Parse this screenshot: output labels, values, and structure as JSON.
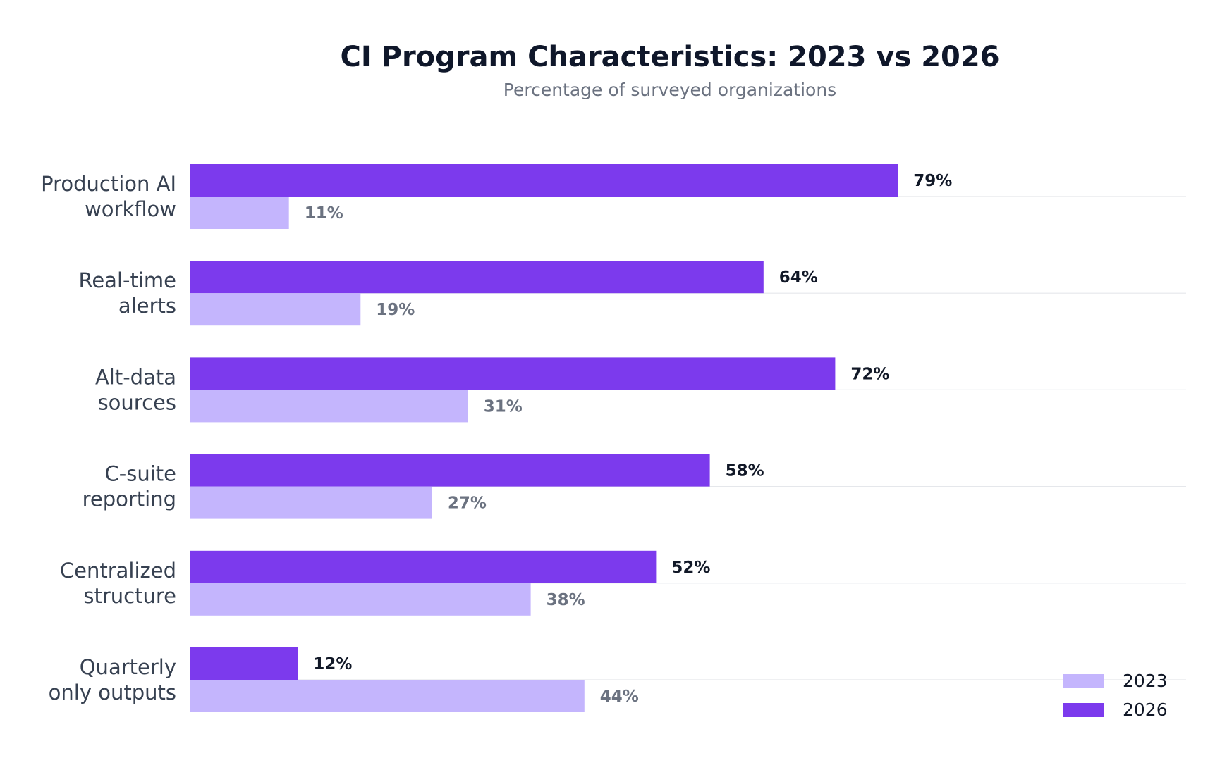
{
  "chart_data": {
    "type": "bar",
    "orientation": "horizontal",
    "title": "CI Program Characteristics: 2023 vs 2026",
    "subtitle": "Percentage of surveyed organizations",
    "categories": [
      [
        "Production AI",
        "workflow"
      ],
      [
        "Real-time",
        "alerts"
      ],
      [
        "Alt-data",
        "sources"
      ],
      [
        "C-suite",
        "reporting"
      ],
      [
        "Centralized",
        "structure"
      ],
      [
        "Quarterly",
        "only outputs"
      ]
    ],
    "series": [
      {
        "name": "2026",
        "color": "#7c3aed",
        "values": [
          79,
          64,
          72,
          58,
          52,
          12
        ],
        "labels": [
          "79%",
          "64%",
          "72%",
          "58%",
          "52%",
          "12%"
        ]
      },
      {
        "name": "2023",
        "color": "#c4b5fd",
        "values": [
          11,
          19,
          31,
          27,
          38,
          44
        ],
        "labels": [
          "11%",
          "19%",
          "31%",
          "27%",
          "38%",
          "44%"
        ]
      }
    ],
    "xlim": [
      0,
      100
    ],
    "grid": true,
    "legend": {
      "placement": "bottom-right",
      "entries": [
        {
          "label": "2023",
          "color": "#c4b5fd"
        },
        {
          "label": "2026",
          "color": "#7c3aed"
        }
      ]
    },
    "colors": {
      "title": "#0f172a",
      "subtitle": "#6b7280",
      "category_label": "#374151",
      "value_label_2026": "#111827",
      "value_label_2023": "#6b7280",
      "gridline": "#e5e7eb"
    }
  }
}
